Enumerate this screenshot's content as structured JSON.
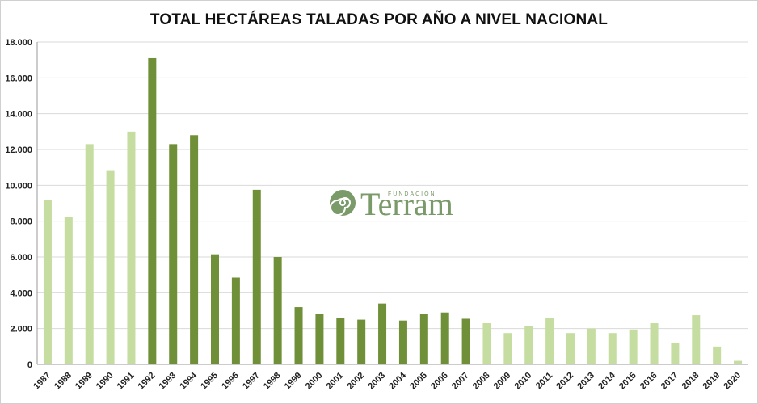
{
  "chart_data": {
    "type": "bar",
    "title": "TOTAL HECTÁREAS TALADAS POR AÑO A NIVEL NACIONAL",
    "xlabel": "",
    "ylabel": "",
    "ylim": [
      0,
      18000
    ],
    "yticks": [
      0,
      2000,
      4000,
      6000,
      8000,
      10000,
      12000,
      14000,
      16000,
      18000
    ],
    "ytick_labels": [
      "0",
      "2.000",
      "4.000",
      "6.000",
      "8.000",
      "10.000",
      "12.000",
      "14.000",
      "16.000",
      "18.000"
    ],
    "grid": true,
    "categories": [
      "1987",
      "1988",
      "1989",
      "1990",
      "1991",
      "1992",
      "1993",
      "1994",
      "1995",
      "1996",
      "1997",
      "1998",
      "1999",
      "2000",
      "2001",
      "2002",
      "2003",
      "2004",
      "2005",
      "2006",
      "2007",
      "2008",
      "2009",
      "2010",
      "2011",
      "2012",
      "2013",
      "2014",
      "2015",
      "2016",
      "2017",
      "2018",
      "2019",
      "2020"
    ],
    "values": [
      9200,
      8250,
      12300,
      10800,
      13000,
      17100,
      12300,
      12800,
      6150,
      4850,
      9750,
      6000,
      3200,
      2800,
      2600,
      2500,
      3400,
      2450,
      2800,
      2900,
      2550,
      2300,
      1750,
      2150,
      2600,
      1750,
      2000,
      1750,
      1950,
      2300,
      1200,
      2750,
      1000,
      200
    ],
    "bar_colors": [
      "#c5dda0",
      "#c5dda0",
      "#c5dda0",
      "#c5dda0",
      "#c5dda0",
      "#6f9039",
      "#6f9039",
      "#6f9039",
      "#6f9039",
      "#6f9039",
      "#6f9039",
      "#6f9039",
      "#6f9039",
      "#6f9039",
      "#6f9039",
      "#6f9039",
      "#6f9039",
      "#6f9039",
      "#6f9039",
      "#6f9039",
      "#6f9039",
      "#c5dda0",
      "#c5dda0",
      "#c5dda0",
      "#c5dda0",
      "#c5dda0",
      "#c5dda0",
      "#c5dda0",
      "#c5dda0",
      "#c5dda0",
      "#c5dda0",
      "#c5dda0",
      "#c5dda0",
      "#c5dda0"
    ]
  },
  "watermark": {
    "brand": "Terram",
    "small": "FUNDACIÓN",
    "color": "#7a9a6a"
  },
  "colors": {
    "grid": "#d9d9d9",
    "axis": "#9a9a9a"
  }
}
